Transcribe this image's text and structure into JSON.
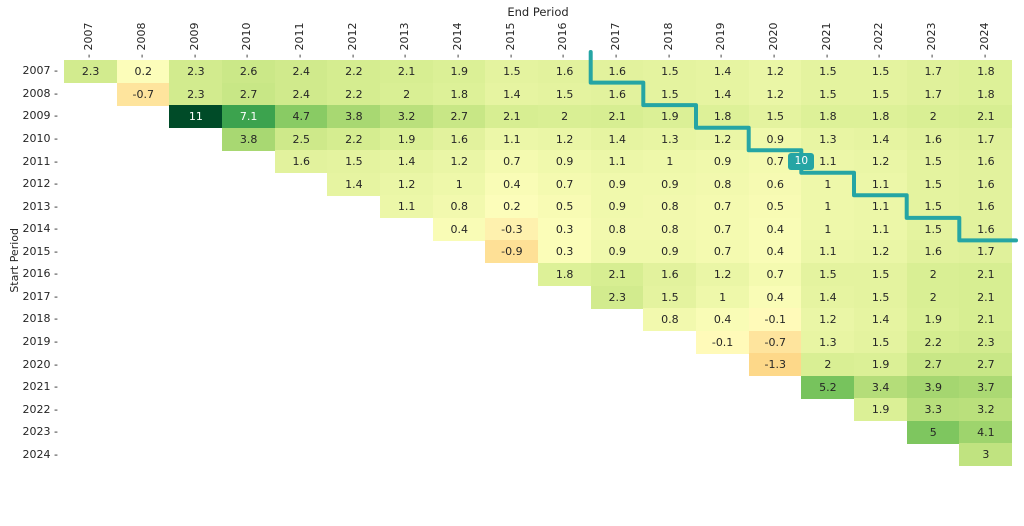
{
  "chart_data": {
    "type": "heatmap",
    "top_axis_title": "End Period",
    "left_axis_title": "Start Period",
    "columns": [
      "2007",
      "2008",
      "2009",
      "2010",
      "2011",
      "2012",
      "2013",
      "2014",
      "2015",
      "2016",
      "2017",
      "2018",
      "2019",
      "2020",
      "2021",
      "2022",
      "2023",
      "2024"
    ],
    "rows": [
      {
        "start_period": "2007",
        "values": [
          2.3,
          0.2,
          2.3,
          2.6,
          2.4,
          2.2,
          2.1,
          1.9,
          1.5,
          1.6,
          1.6,
          1.5,
          1.4,
          1.2,
          1.5,
          1.5,
          1.7,
          1.8
        ]
      },
      {
        "start_period": "2008",
        "values": [
          -0.7,
          2.3,
          2.7,
          2.4,
          2.2,
          2,
          1.8,
          1.4,
          1.5,
          1.6,
          1.5,
          1.4,
          1.2,
          1.5,
          1.5,
          1.7,
          1.8
        ]
      },
      {
        "start_period": "2009",
        "values": [
          11,
          7.1,
          4.7,
          3.8,
          3.2,
          2.7,
          2.1,
          2,
          2.1,
          1.9,
          1.8,
          1.5,
          1.8,
          1.8,
          2,
          2.1
        ]
      },
      {
        "start_period": "2010",
        "values": [
          3.8,
          2.5,
          2.2,
          1.9,
          1.6,
          1.1,
          1.2,
          1.4,
          1.3,
          1.2,
          0.9,
          1.3,
          1.4,
          1.6,
          1.7
        ]
      },
      {
        "start_period": "2011",
        "values": [
          1.6,
          1.5,
          1.4,
          1.2,
          0.7,
          0.9,
          1.1,
          1,
          0.9,
          0.7,
          1.1,
          1.2,
          1.5,
          1.6
        ]
      },
      {
        "start_period": "2012",
        "values": [
          1.4,
          1.2,
          1,
          0.4,
          0.7,
          0.9,
          0.9,
          0.8,
          0.6,
          1,
          1.1,
          1.5,
          1.6
        ]
      },
      {
        "start_period": "2013",
        "values": [
          1.1,
          0.8,
          0.2,
          0.5,
          0.9,
          0.8,
          0.7,
          0.5,
          1,
          1.1,
          1.5,
          1.6
        ]
      },
      {
        "start_period": "2014",
        "values": [
          0.4,
          -0.3,
          0.3,
          0.8,
          0.8,
          0.7,
          0.4,
          1,
          1.1,
          1.5,
          1.6
        ]
      },
      {
        "start_period": "2015",
        "values": [
          -0.9,
          0.3,
          0.9,
          0.9,
          0.7,
          0.4,
          1.1,
          1.2,
          1.6,
          1.7
        ]
      },
      {
        "start_period": "2016",
        "values": [
          1.8,
          2.1,
          1.6,
          1.2,
          0.7,
          1.5,
          1.5,
          2,
          2.1
        ]
      },
      {
        "start_period": "2017",
        "values": [
          2.3,
          1.5,
          1,
          0.4,
          1.4,
          1.5,
          2,
          2.1
        ]
      },
      {
        "start_period": "2018",
        "values": [
          0.8,
          0.4,
          -0.1,
          1.2,
          1.4,
          1.9,
          2.1
        ]
      },
      {
        "start_period": "2019",
        "values": [
          -0.1,
          -0.7,
          1.3,
          1.5,
          2.2,
          2.3
        ]
      },
      {
        "start_period": "2020",
        "values": [
          -1.3,
          2,
          1.9,
          2.7,
          2.7
        ]
      },
      {
        "start_period": "2021",
        "values": [
          5.2,
          3.4,
          3.9,
          3.7
        ]
      },
      {
        "start_period": "2022",
        "values": [
          1.9,
          3.3,
          3.2
        ]
      },
      {
        "start_period": "2023",
        "values": [
          5,
          4.1
        ]
      },
      {
        "start_period": "2024",
        "values": [
          3
        ]
      }
    ],
    "annotation": {
      "label": "10",
      "row_start_period": "2011",
      "at_column": "2021"
    },
    "colors": {
      "line": "#25a5a4",
      "badge_text": "#ffffff",
      "value_text_dark": "#262626",
      "value_text_light": "#ffffff",
      "cell_negative": "#fdd584",
      "cell_zero": "#ffffbe",
      "cell_max": "#004b28"
    }
  }
}
